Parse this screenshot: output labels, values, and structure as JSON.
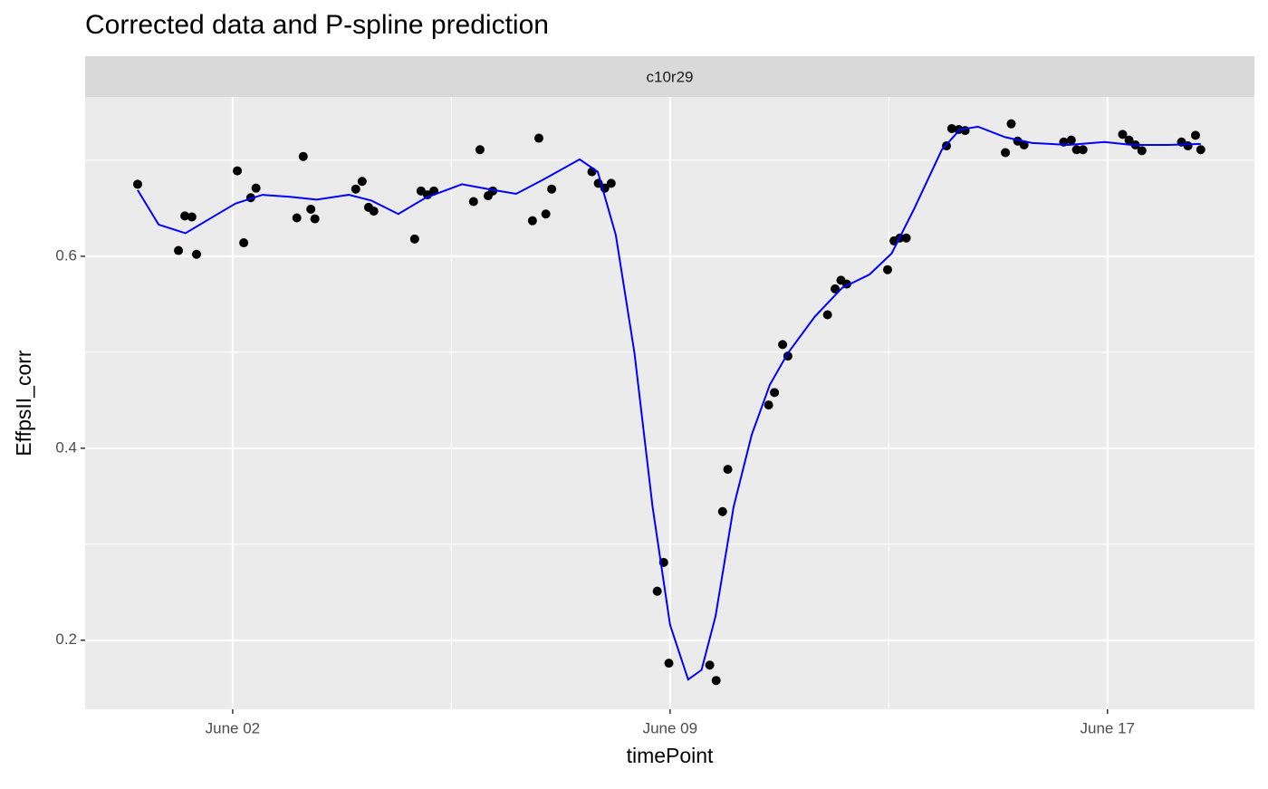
{
  "chart_data": {
    "type": "scatter",
    "title": "Corrected data and P-spline prediction",
    "facet_label": "c10r29",
    "x_label": "timePoint",
    "y_label": "EffpsII_corr",
    "xlim": [
      -0.53,
      19.52
    ],
    "ylim": [
      0.128,
      0.766
    ],
    "xticks": [
      {
        "value": 2,
        "label": "June 02"
      },
      {
        "value": 9.5,
        "label": "June 09"
      },
      {
        "value": 17,
        "label": "June 17"
      }
    ],
    "yticks": [
      0.2,
      0.4,
      0.6
    ],
    "grid": true,
    "series": [
      {
        "type": "scatter",
        "color": "#000000",
        "x": [
          0.37,
          1.07,
          1.18,
          1.3,
          1.38,
          2.08,
          2.19,
          2.31,
          2.4,
          3.1,
          3.21,
          3.34,
          3.41,
          4.11,
          4.22,
          4.33,
          4.42,
          5.12,
          5.23,
          5.34,
          5.45,
          6.13,
          6.24,
          6.38,
          6.46,
          7.14,
          7.25,
          7.37,
          7.47,
          8.16,
          8.27,
          8.38,
          8.49,
          9.28,
          9.39,
          9.48,
          10.18,
          10.29,
          10.4,
          10.49,
          11.19,
          11.29,
          11.43,
          11.52,
          12.2,
          12.33,
          12.43,
          12.53,
          13.23,
          13.34,
          13.44,
          13.55,
          14.24,
          14.33,
          14.45,
          14.56,
          15.25,
          15.35,
          15.46,
          15.57,
          16.25,
          16.38,
          16.47,
          16.58,
          17.26,
          17.37,
          17.48,
          17.59,
          18.27,
          18.38,
          18.51,
          18.6
        ],
        "values": [
          0.675,
          0.606,
          0.642,
          0.641,
          0.602,
          0.689,
          0.614,
          0.661,
          0.671,
          0.64,
          0.704,
          0.649,
          0.639,
          0.67,
          0.678,
          0.651,
          0.647,
          0.618,
          0.668,
          0.664,
          0.668,
          0.657,
          0.711,
          0.663,
          0.668,
          0.637,
          0.723,
          0.644,
          0.67,
          0.688,
          0.676,
          0.671,
          0.676,
          0.251,
          0.281,
          0.176,
          0.174,
          0.158,
          0.334,
          0.378,
          0.445,
          0.458,
          0.508,
          0.496,
          0.539,
          0.566,
          0.575,
          0.571,
          0.586,
          0.616,
          0.619,
          0.619,
          0.715,
          0.733,
          0.732,
          0.731,
          0.708,
          0.738,
          0.72,
          0.716,
          0.719,
          0.721,
          0.711,
          0.711,
          0.727,
          0.721,
          0.716,
          0.71,
          0.719,
          0.715,
          0.726,
          0.711
        ]
      },
      {
        "type": "line",
        "color": "#0000ff",
        "x": [
          0.37,
          0.73,
          1.19,
          1.66,
          2.05,
          2.51,
          2.98,
          3.44,
          3.99,
          4.38,
          4.84,
          5.31,
          5.93,
          6.47,
          6.86,
          7.33,
          7.95,
          8.26,
          8.57,
          8.89,
          9.2,
          9.5,
          9.81,
          10.04,
          10.28,
          10.59,
          10.9,
          11.21,
          11.52,
          11.98,
          12.45,
          12.92,
          13.3,
          13.69,
          14.16,
          14.47,
          14.78,
          15.25,
          15.71,
          16.33,
          16.95,
          17.42,
          18.04,
          18.6
        ],
        "values": [
          0.669,
          0.633,
          0.624,
          0.641,
          0.655,
          0.664,
          0.662,
          0.659,
          0.664,
          0.658,
          0.644,
          0.661,
          0.675,
          0.669,
          0.665,
          0.68,
          0.701,
          0.688,
          0.622,
          0.499,
          0.339,
          0.216,
          0.159,
          0.169,
          0.225,
          0.339,
          0.414,
          0.466,
          0.499,
          0.537,
          0.567,
          0.581,
          0.603,
          0.65,
          0.711,
          0.732,
          0.735,
          0.724,
          0.718,
          0.716,
          0.719,
          0.716,
          0.716,
          0.717
        ]
      }
    ]
  }
}
